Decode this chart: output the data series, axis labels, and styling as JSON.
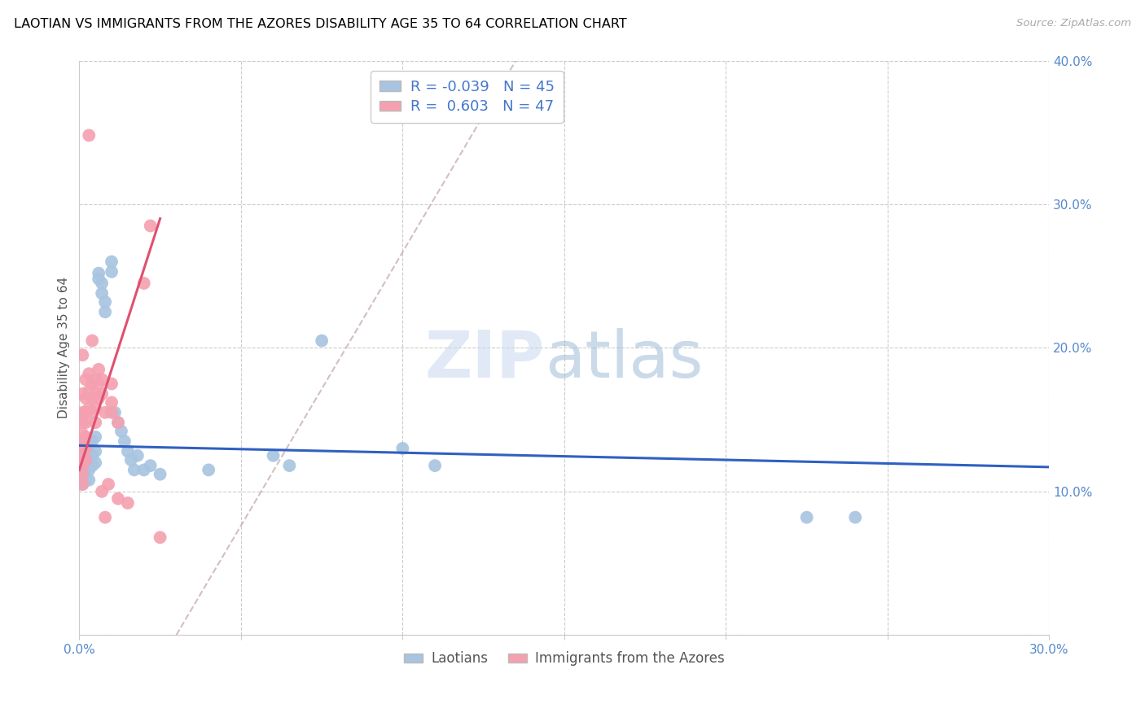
{
  "title": "LAOTIAN VS IMMIGRANTS FROM THE AZORES DISABILITY AGE 35 TO 64 CORRELATION CHART",
  "source": "Source: ZipAtlas.com",
  "ylabel": "Disability Age 35 to 64",
  "xlim": [
    0.0,
    0.3
  ],
  "ylim": [
    0.0,
    0.4
  ],
  "xticks": [
    0.0,
    0.05,
    0.1,
    0.15,
    0.2,
    0.25,
    0.3
  ],
  "yticks": [
    0.0,
    0.1,
    0.2,
    0.3,
    0.4
  ],
  "legend_labels": [
    "Laotians",
    "Immigrants from the Azores"
  ],
  "legend_R": [
    "-0.039",
    "0.603"
  ],
  "legend_N": [
    "45",
    "47"
  ],
  "color_blue": "#a8c4e0",
  "color_pink": "#f4a0b0",
  "line_color_blue": "#3060c0",
  "line_color_pink": "#e05070",
  "line_color_diag": "#c8b0b0",
  "watermark_zip": "ZIP",
  "watermark_atlas": "atlas",
  "blue_scatter": [
    [
      0.001,
      0.135
    ],
    [
      0.001,
      0.12
    ],
    [
      0.001,
      0.112
    ],
    [
      0.001,
      0.105
    ],
    [
      0.002,
      0.128
    ],
    [
      0.002,
      0.12
    ],
    [
      0.002,
      0.115
    ],
    [
      0.002,
      0.108
    ],
    [
      0.003,
      0.132
    ],
    [
      0.003,
      0.122
    ],
    [
      0.003,
      0.115
    ],
    [
      0.003,
      0.108
    ],
    [
      0.004,
      0.135
    ],
    [
      0.004,
      0.125
    ],
    [
      0.004,
      0.118
    ],
    [
      0.005,
      0.138
    ],
    [
      0.005,
      0.128
    ],
    [
      0.005,
      0.12
    ],
    [
      0.006,
      0.252
    ],
    [
      0.006,
      0.248
    ],
    [
      0.007,
      0.245
    ],
    [
      0.007,
      0.238
    ],
    [
      0.008,
      0.232
    ],
    [
      0.008,
      0.225
    ],
    [
      0.01,
      0.26
    ],
    [
      0.01,
      0.253
    ],
    [
      0.011,
      0.155
    ],
    [
      0.012,
      0.148
    ],
    [
      0.013,
      0.142
    ],
    [
      0.014,
      0.135
    ],
    [
      0.015,
      0.128
    ],
    [
      0.016,
      0.122
    ],
    [
      0.017,
      0.115
    ],
    [
      0.018,
      0.125
    ],
    [
      0.02,
      0.115
    ],
    [
      0.022,
      0.118
    ],
    [
      0.025,
      0.112
    ],
    [
      0.04,
      0.115
    ],
    [
      0.06,
      0.125
    ],
    [
      0.065,
      0.118
    ],
    [
      0.075,
      0.205
    ],
    [
      0.1,
      0.13
    ],
    [
      0.11,
      0.118
    ],
    [
      0.225,
      0.082
    ],
    [
      0.24,
      0.082
    ]
  ],
  "pink_scatter": [
    [
      0.001,
      0.195
    ],
    [
      0.001,
      0.168
    ],
    [
      0.001,
      0.155
    ],
    [
      0.001,
      0.148
    ],
    [
      0.001,
      0.14
    ],
    [
      0.001,
      0.132
    ],
    [
      0.001,
      0.125
    ],
    [
      0.001,
      0.118
    ],
    [
      0.001,
      0.112
    ],
    [
      0.001,
      0.105
    ],
    [
      0.002,
      0.178
    ],
    [
      0.002,
      0.165
    ],
    [
      0.002,
      0.155
    ],
    [
      0.002,
      0.148
    ],
    [
      0.002,
      0.138
    ],
    [
      0.002,
      0.13
    ],
    [
      0.002,
      0.122
    ],
    [
      0.003,
      0.348
    ],
    [
      0.003,
      0.182
    ],
    [
      0.003,
      0.17
    ],
    [
      0.003,
      0.158
    ],
    [
      0.004,
      0.205
    ],
    [
      0.004,
      0.175
    ],
    [
      0.004,
      0.165
    ],
    [
      0.004,
      0.155
    ],
    [
      0.005,
      0.178
    ],
    [
      0.005,
      0.168
    ],
    [
      0.005,
      0.158
    ],
    [
      0.005,
      0.148
    ],
    [
      0.006,
      0.185
    ],
    [
      0.006,
      0.175
    ],
    [
      0.006,
      0.165
    ],
    [
      0.007,
      0.178
    ],
    [
      0.007,
      0.168
    ],
    [
      0.007,
      0.1
    ],
    [
      0.008,
      0.155
    ],
    [
      0.008,
      0.082
    ],
    [
      0.009,
      0.105
    ],
    [
      0.01,
      0.175
    ],
    [
      0.01,
      0.162
    ],
    [
      0.01,
      0.155
    ],
    [
      0.012,
      0.148
    ],
    [
      0.012,
      0.095
    ],
    [
      0.015,
      0.092
    ],
    [
      0.02,
      0.245
    ],
    [
      0.022,
      0.285
    ],
    [
      0.025,
      0.068
    ]
  ],
  "blue_line_x": [
    0.0,
    0.3
  ],
  "blue_line_y": [
    0.132,
    0.117
  ],
  "pink_line_x": [
    0.0,
    0.025
  ],
  "pink_line_y": [
    0.115,
    0.29
  ],
  "diag_line_x": [
    0.03,
    0.135
  ],
  "diag_line_y": [
    0.0,
    0.4
  ]
}
